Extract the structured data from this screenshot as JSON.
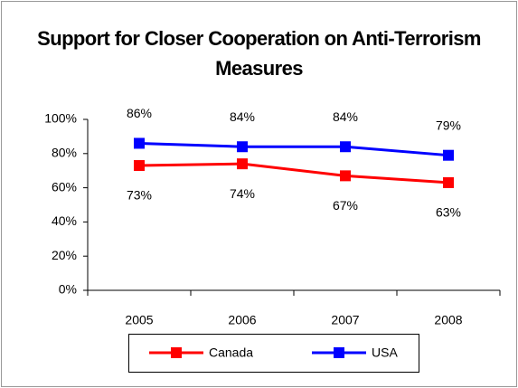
{
  "chart_data": {
    "type": "line",
    "title": "Support for Closer Cooperation on Anti-Terrorism Measures",
    "categories": [
      "2005",
      "2006",
      "2007",
      "2008"
    ],
    "series": [
      {
        "name": "Canada",
        "color": "#ff0000",
        "values": [
          73,
          74,
          67,
          63
        ],
        "value_labels": [
          "73%",
          "74%",
          "67%",
          "63%"
        ]
      },
      {
        "name": "USA",
        "color": "#0000ff",
        "values": [
          86,
          84,
          84,
          79
        ],
        "value_labels": [
          "86%",
          "84%",
          "84%",
          "79%"
        ]
      }
    ],
    "ylim": [
      0,
      100
    ],
    "yticks": [
      {
        "value": 0,
        "label": "0%"
      },
      {
        "value": 20,
        "label": "20%"
      },
      {
        "value": 40,
        "label": "40%"
      },
      {
        "value": 60,
        "label": "60%"
      },
      {
        "value": 80,
        "label": "80%"
      },
      {
        "value": 100,
        "label": "100%"
      }
    ],
    "grid": false,
    "legend": "bottom"
  }
}
